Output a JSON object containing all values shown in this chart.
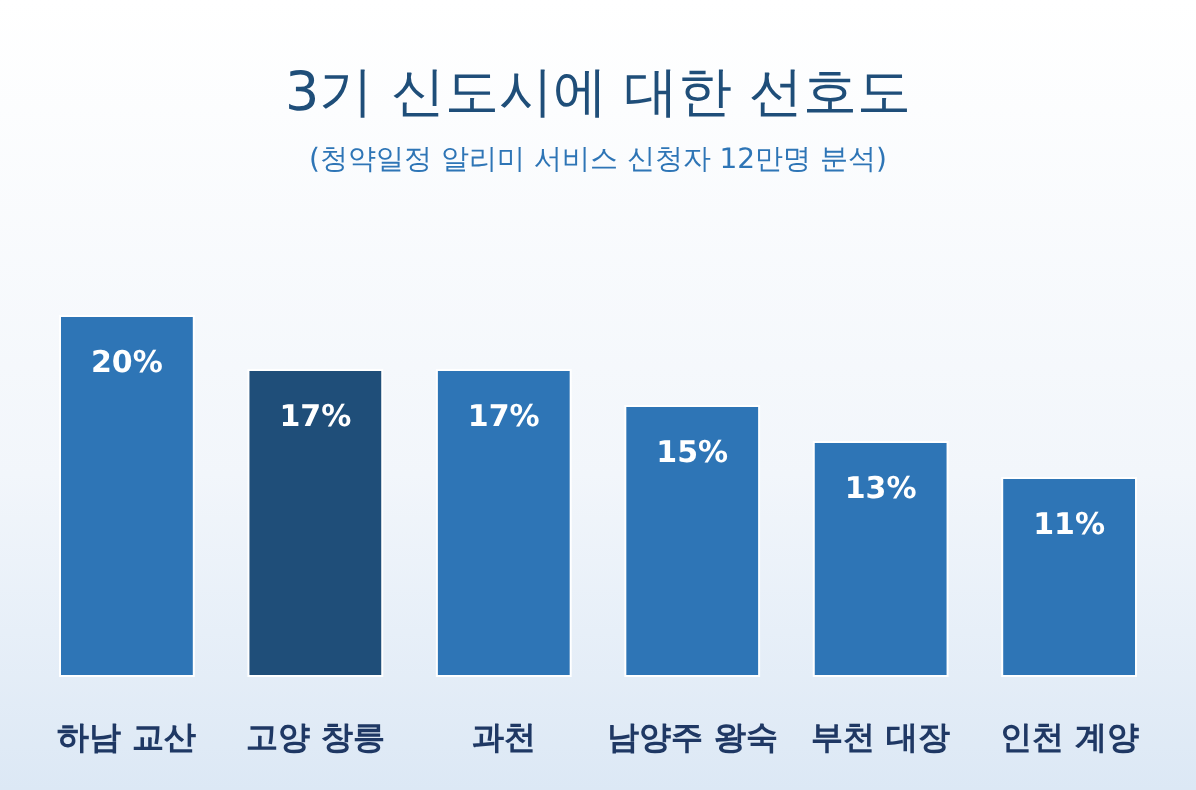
{
  "chart_data": {
    "type": "bar",
    "title": "3기 신도시에 대한 선호도",
    "subtitle": "(청약일정 알리미 서비스 신청자 12만명 분석)",
    "categories": [
      "하남 교산",
      "고양 창릉",
      "과천",
      "남양주 왕숙",
      "부천 대장",
      "인천 계양"
    ],
    "values": [
      20,
      17,
      17,
      15,
      13,
      11
    ],
    "colors": [
      "#2e75b6",
      "#1f4e79",
      "#2e75b6",
      "#2e75b6",
      "#2e75b6",
      "#2e75b6"
    ],
    "value_labels": [
      "20%",
      "17%",
      "17%",
      "15%",
      "13%",
      "11%"
    ],
    "ylim": [
      0,
      20
    ],
    "tick_labels": "x"
  }
}
